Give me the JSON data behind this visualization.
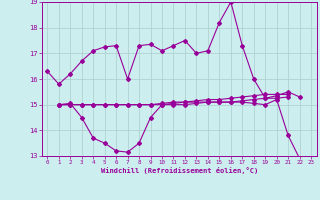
{
  "xlabel": "Windchill (Refroidissement éolien,°C)",
  "x": [
    0,
    1,
    2,
    3,
    4,
    5,
    6,
    7,
    8,
    9,
    10,
    11,
    12,
    13,
    14,
    15,
    16,
    17,
    18,
    19,
    20,
    21,
    22,
    23
  ],
  "line1": [
    16.3,
    15.8,
    16.2,
    16.7,
    17.1,
    17.25,
    17.3,
    16.0,
    17.3,
    17.35,
    17.1,
    17.3,
    17.5,
    17.0,
    17.1,
    18.2,
    19.0,
    17.3,
    16.0,
    15.25,
    15.35,
    15.5,
    15.3,
    null
  ],
  "line2": [
    null,
    15.0,
    15.05,
    14.5,
    13.7,
    13.5,
    13.2,
    13.15,
    13.5,
    14.5,
    15.0,
    15.05,
    15.1,
    15.1,
    15.1,
    15.1,
    15.1,
    15.1,
    15.05,
    15.0,
    15.2,
    13.8,
    12.9,
    12.7
  ],
  "line3": [
    null,
    15.0,
    15.0,
    15.0,
    15.0,
    15.0,
    15.0,
    15.0,
    15.0,
    15.0,
    15.05,
    15.1,
    15.1,
    15.15,
    15.2,
    15.2,
    15.25,
    15.3,
    15.35,
    15.4,
    15.4,
    15.4,
    null,
    null
  ],
  "line4": [
    null,
    15.0,
    15.0,
    15.0,
    15.0,
    15.0,
    15.0,
    15.0,
    15.0,
    15.0,
    15.0,
    15.0,
    15.0,
    15.05,
    15.1,
    15.1,
    15.1,
    15.15,
    15.2,
    15.25,
    15.25,
    15.3,
    null,
    null
  ],
  "ylim": [
    13,
    19
  ],
  "yticks": [
    13,
    14,
    15,
    16,
    17,
    18,
    19
  ],
  "color": "#990099",
  "bg_color": "#cceeee",
  "grid_color": "#aacccc",
  "line_width": 0.8,
  "marker": "D",
  "marker_size": 2.0
}
